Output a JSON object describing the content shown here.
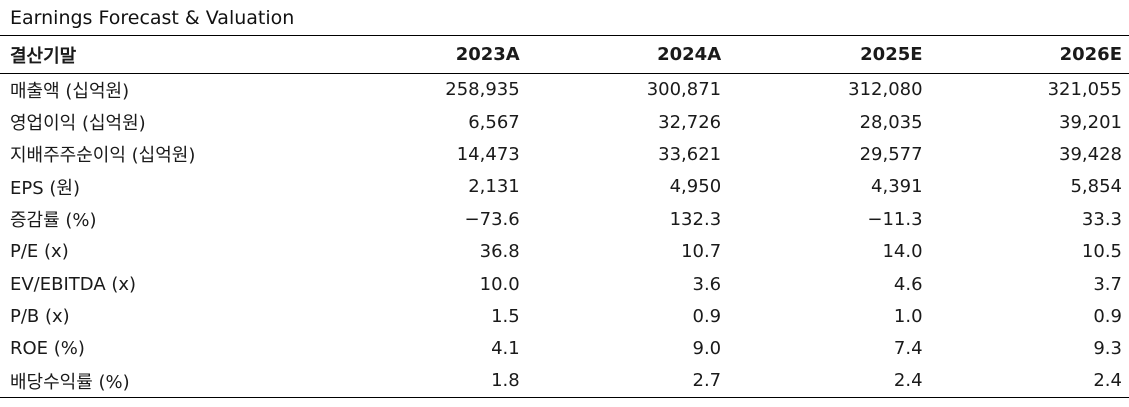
{
  "title": "Earnings Forecast & Valuation",
  "table": {
    "headers": [
      "결산기말",
      "2023A",
      "2024A",
      "2025E",
      "2026E"
    ],
    "rows": [
      {
        "label": "매출액 (십억원)",
        "values": [
          "258,935",
          "300,871",
          "312,080",
          "321,055"
        ]
      },
      {
        "label": "영업이익 (십억원)",
        "values": [
          "6,567",
          "32,726",
          "28,035",
          "39,201"
        ]
      },
      {
        "label": "지배주주순이익 (십억원)",
        "values": [
          "14,473",
          "33,621",
          "29,577",
          "39,428"
        ]
      },
      {
        "label": "EPS (원)",
        "values": [
          "2,131",
          "4,950",
          "4,391",
          "5,854"
        ]
      },
      {
        "label": "증감률 (%)",
        "values": [
          "−73.6",
          "132.3",
          "−11.3",
          "33.3"
        ]
      },
      {
        "label": "P/E (x)",
        "values": [
          "36.8",
          "10.7",
          "14.0",
          "10.5"
        ]
      },
      {
        "label": "EV/EBITDA (x)",
        "values": [
          "10.0",
          "3.6",
          "4.6",
          "3.7"
        ]
      },
      {
        "label": "P/B (x)",
        "values": [
          "1.5",
          "0.9",
          "1.0",
          "0.9"
        ]
      },
      {
        "label": "ROE (%)",
        "values": [
          "4.1",
          "9.0",
          "7.4",
          "9.3"
        ]
      },
      {
        "label": "배당수익률 (%)",
        "values": [
          "1.8",
          "2.7",
          "2.4",
          "2.4"
        ]
      }
    ]
  }
}
